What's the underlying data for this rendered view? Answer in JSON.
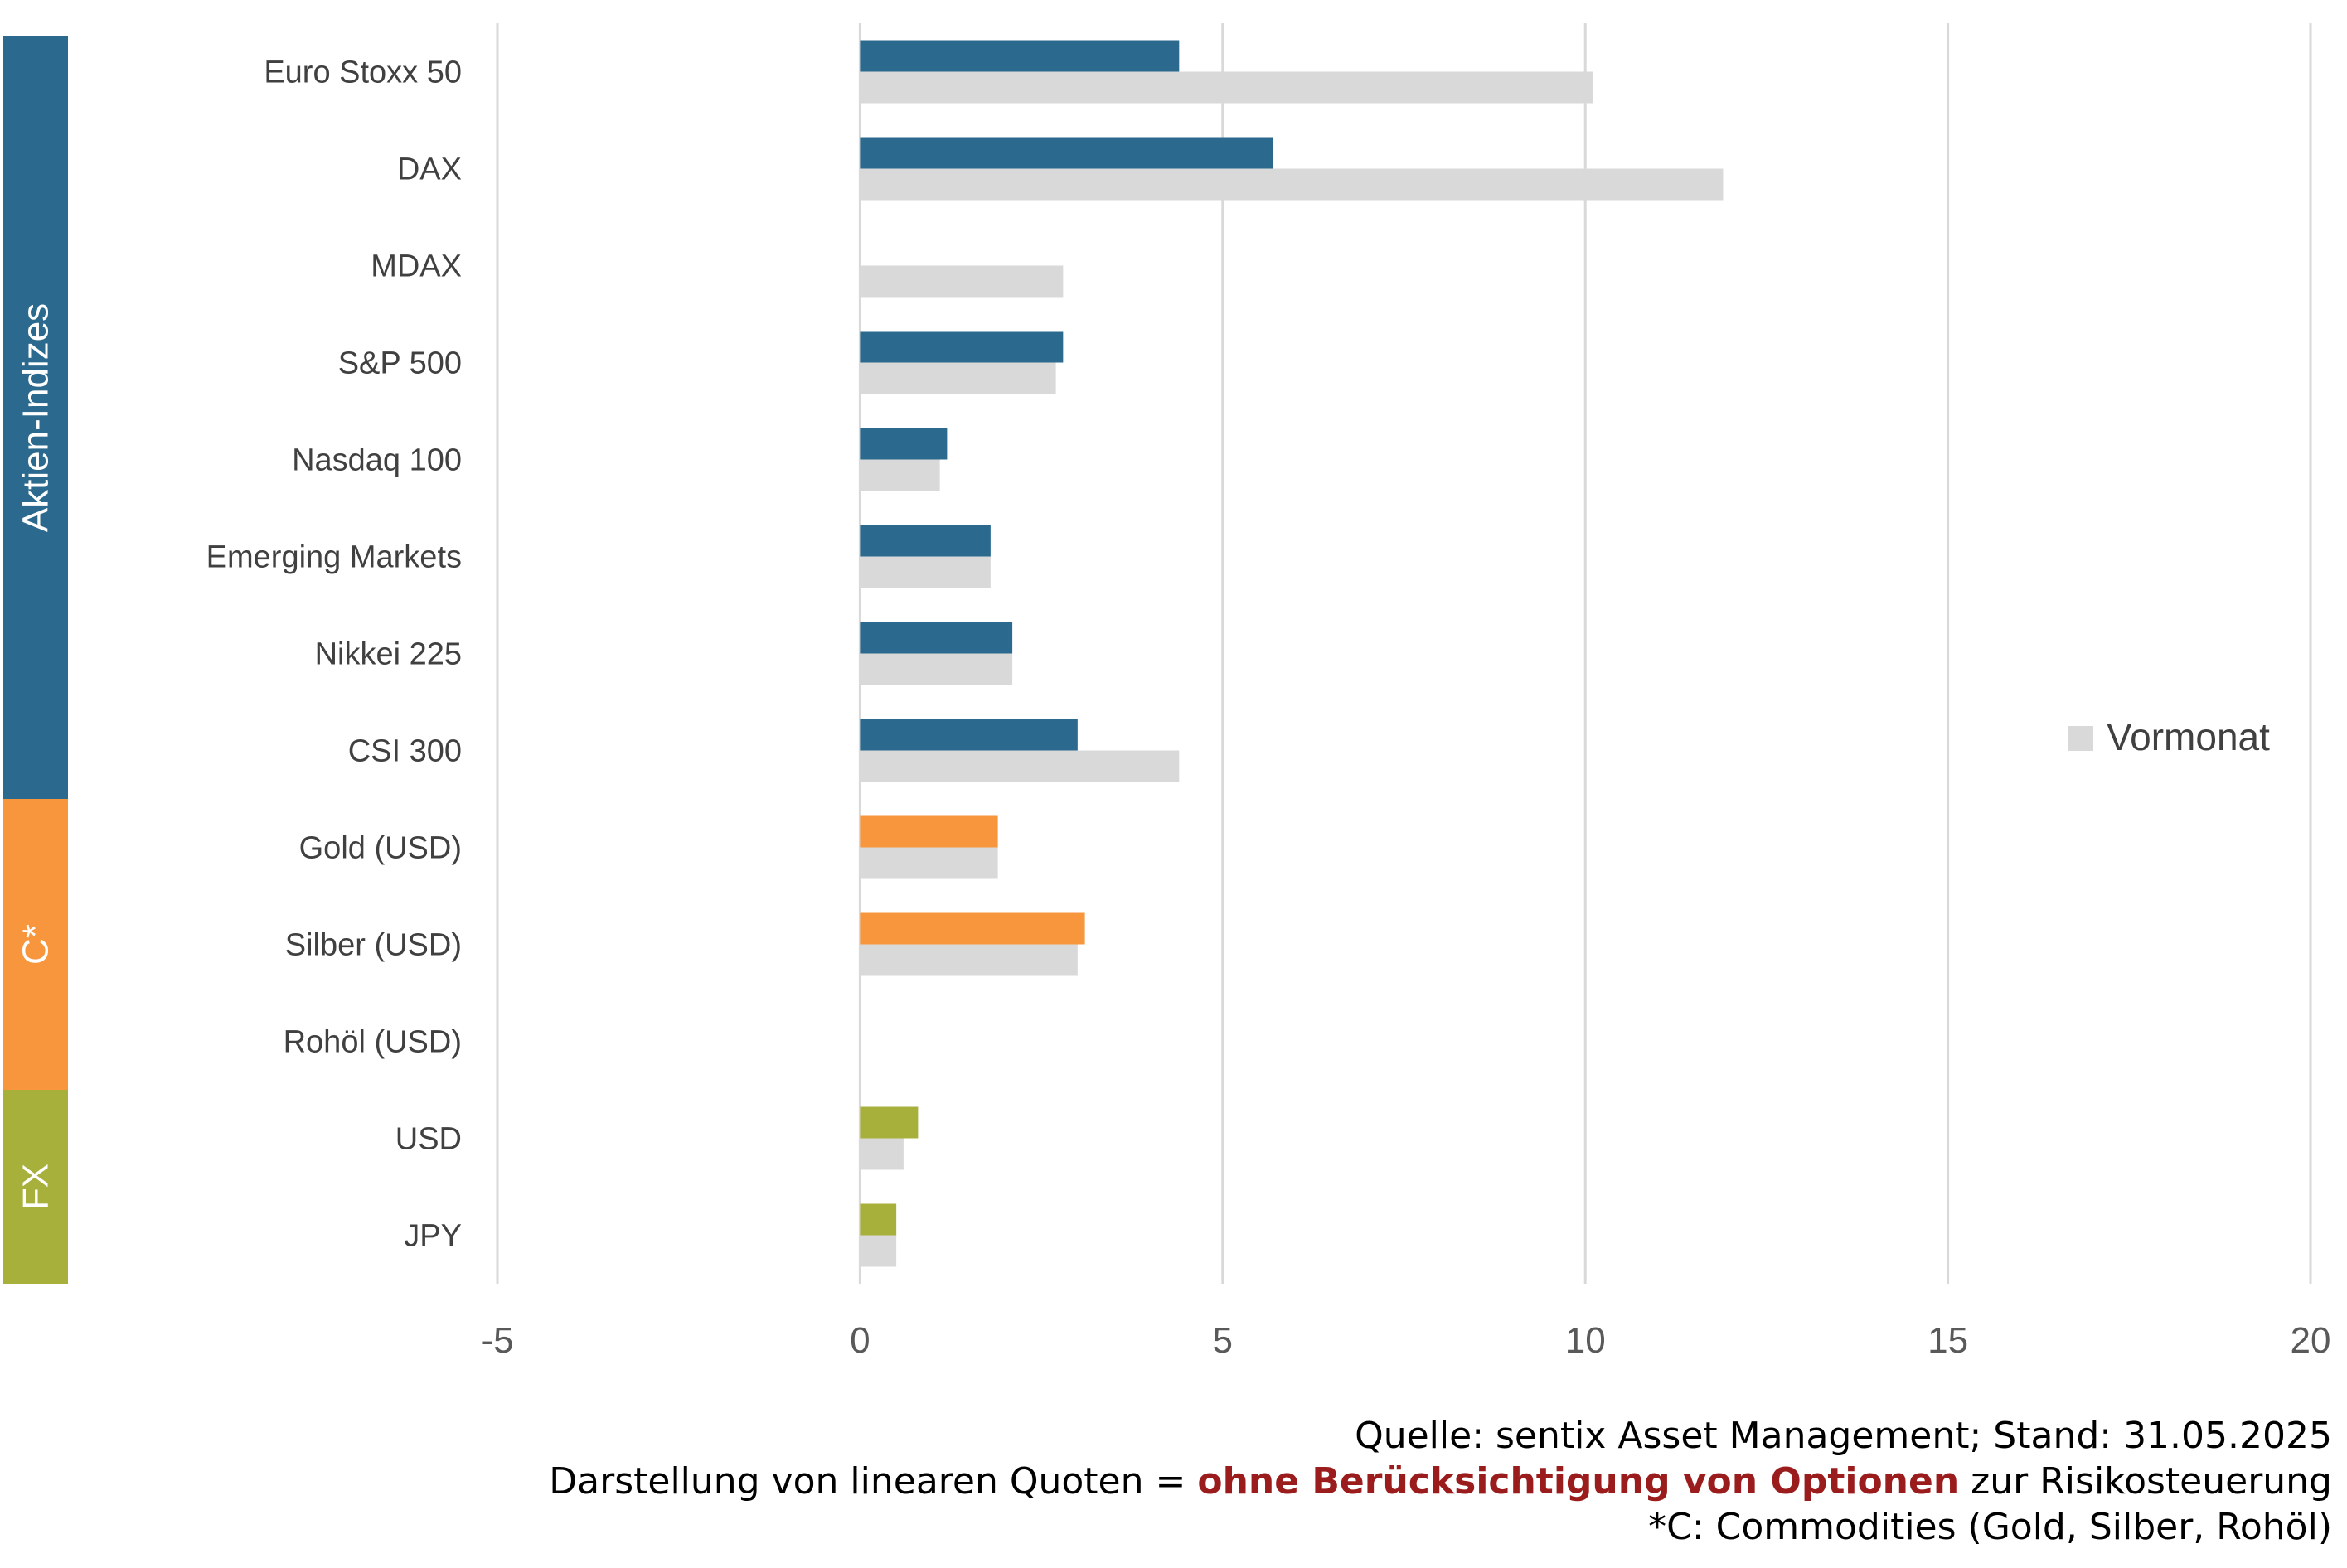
{
  "chart_data": {
    "type": "bar",
    "orientation": "horizontal",
    "categories": [
      "Euro Stoxx 50",
      "DAX",
      "MDAX",
      "S&P 500",
      "Nasdaq 100",
      "Emerging Markets",
      "Nikkei 225",
      "CSI 300",
      "Gold (USD)",
      "Silber (USD)",
      "Rohöl (USD)",
      "USD",
      "JPY"
    ],
    "groups": [
      {
        "label": "Aktien-Indizes",
        "from": 0,
        "to": 7,
        "color": "#2b6a8e"
      },
      {
        "label": "C*",
        "from": 8,
        "to": 10,
        "color": "#f7963c"
      },
      {
        "label": "FX",
        "from": 11,
        "to": 12,
        "color": "#a8b03c"
      }
    ],
    "series": [
      {
        "values": [
          4.4,
          5.7,
          0,
          2.8,
          1.2,
          1.8,
          2.1,
          3.0,
          1.9,
          3.1,
          0,
          0.8,
          0.5
        ],
        "colors": [
          "#2b6a8e",
          "#2b6a8e",
          "#2b6a8e",
          "#2b6a8e",
          "#2b6a8e",
          "#2b6a8e",
          "#2b6a8e",
          "#2b6a8e",
          "#f7963c",
          "#f7963c",
          "#f7963c",
          "#a8b03c",
          "#a8b03c"
        ]
      },
      {
        "name": "Vormonat",
        "values": [
          10.1,
          11.9,
          2.8,
          2.7,
          1.1,
          1.8,
          2.1,
          4.4,
          1.9,
          3.0,
          0,
          0.6,
          0.5
        ],
        "color": "#d9d9d9"
      }
    ],
    "xlim": [
      -5,
      20
    ],
    "xticks": [
      -5,
      0,
      5,
      10,
      15,
      20
    ],
    "grid": true,
    "legend_position": "right"
  },
  "footer": {
    "line1": "Quelle: sentix Asset Management; Stand: 31.05.2025",
    "line2_pre": "Darstellung von linearen Quoten = ",
    "line2_highlight": "ohne Berücksichtigung von Optionen",
    "line2_post": " zur Risikosteuerung",
    "line3": "*C: Commodities (Gold, Silber, Rohöl)"
  }
}
